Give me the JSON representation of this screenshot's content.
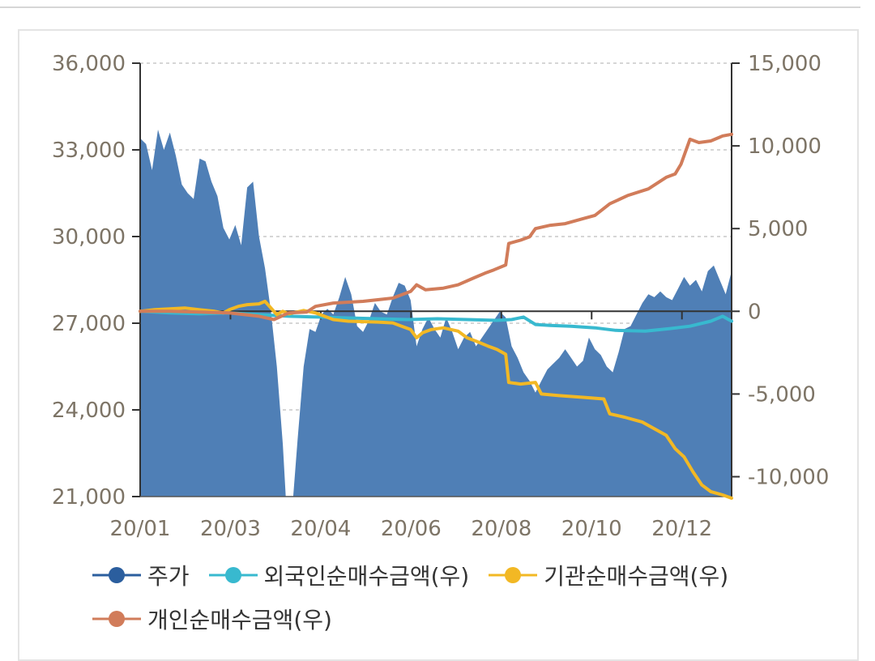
{
  "chart_data": {
    "type": "area+line",
    "x_ticks": [
      "20/01",
      "20/03",
      "20/04",
      "20/06",
      "20/08",
      "20/10",
      "20/12"
    ],
    "y_left": {
      "min": 21000,
      "max": 36000,
      "ticks": [
        "36,000",
        "33,000",
        "30,000",
        "27,000",
        "24,000",
        "21,000"
      ],
      "tick_values": [
        36000,
        33000,
        30000,
        27000,
        24000,
        21000
      ]
    },
    "y_right": {
      "min": -11200,
      "max": 15000,
      "ticks": [
        "15,000",
        "10,000",
        "5,000",
        "0",
        "-5,000",
        "-10,000"
      ],
      "tick_values": [
        15000,
        10000,
        5000,
        0,
        -5000,
        -10000
      ]
    },
    "grid": true,
    "legend_position": "bottom-left",
    "series": [
      {
        "name": "주가",
        "axis": "left",
        "style": "area",
        "color": "#2b5e9e",
        "fill": "#4f7fb6",
        "points": [
          [
            0,
            33400
          ],
          [
            4,
            33200
          ],
          [
            8,
            32300
          ],
          [
            12,
            33700
          ],
          [
            16,
            33000
          ],
          [
            20,
            33600
          ],
          [
            24,
            32800
          ],
          [
            28,
            31800
          ],
          [
            32,
            31500
          ],
          [
            36,
            31300
          ],
          [
            40,
            32700
          ],
          [
            44,
            32600
          ],
          [
            48,
            31900
          ],
          [
            52,
            31400
          ],
          [
            56,
            30300
          ],
          [
            60,
            29900
          ],
          [
            64,
            30400
          ],
          [
            68,
            29700
          ],
          [
            72,
            31700
          ],
          [
            76,
            31900
          ],
          [
            80,
            30000
          ],
          [
            84,
            28900
          ],
          [
            88,
            27400
          ],
          [
            92,
            25500
          ],
          [
            96,
            22800
          ],
          [
            98,
            21000
          ],
          [
            103,
            21000
          ],
          [
            106,
            23000
          ],
          [
            110,
            25500
          ],
          [
            114,
            26800
          ],
          [
            118,
            26700
          ],
          [
            122,
            27300
          ],
          [
            126,
            27500
          ],
          [
            130,
            27300
          ],
          [
            134,
            27900
          ],
          [
            138,
            28600
          ],
          [
            142,
            28000
          ],
          [
            146,
            26900
          ],
          [
            150,
            26700
          ],
          [
            154,
            27100
          ],
          [
            158,
            27700
          ],
          [
            162,
            27400
          ],
          [
            166,
            27300
          ],
          [
            170,
            27900
          ],
          [
            174,
            28400
          ],
          [
            178,
            28300
          ],
          [
            182,
            27800
          ],
          [
            186,
            26200
          ],
          [
            190,
            26800
          ],
          [
            194,
            27200
          ],
          [
            198,
            26800
          ],
          [
            202,
            26500
          ],
          [
            206,
            27200
          ],
          [
            210,
            26700
          ],
          [
            214,
            26100
          ],
          [
            218,
            26500
          ],
          [
            222,
            26700
          ],
          [
            226,
            26200
          ],
          [
            230,
            26500
          ],
          [
            234,
            26800
          ],
          [
            238,
            27100
          ],
          [
            242,
            27400
          ],
          [
            246,
            27200
          ],
          [
            250,
            26200
          ],
          [
            254,
            25800
          ],
          [
            258,
            25300
          ],
          [
            262,
            25000
          ],
          [
            266,
            24600
          ],
          [
            270,
            25000
          ],
          [
            274,
            25400
          ],
          [
            278,
            25600
          ],
          [
            282,
            25800
          ],
          [
            286,
            26100
          ],
          [
            290,
            25800
          ],
          [
            294,
            25500
          ],
          [
            298,
            25700
          ],
          [
            302,
            26500
          ],
          [
            306,
            26100
          ],
          [
            310,
            25900
          ],
          [
            314,
            25500
          ],
          [
            318,
            25300
          ],
          [
            322,
            26000
          ],
          [
            326,
            26800
          ],
          [
            330,
            26900
          ],
          [
            334,
            27300
          ],
          [
            338,
            27700
          ],
          [
            342,
            28000
          ],
          [
            346,
            27900
          ],
          [
            350,
            28100
          ],
          [
            354,
            27900
          ],
          [
            358,
            27800
          ],
          [
            362,
            28200
          ],
          [
            366,
            28600
          ],
          [
            370,
            28300
          ],
          [
            374,
            28500
          ],
          [
            378,
            28100
          ],
          [
            382,
            28800
          ],
          [
            386,
            29000
          ],
          [
            390,
            28500
          ],
          [
            394,
            28000
          ],
          [
            398,
            28800
          ]
        ]
      },
      {
        "name": "외국인순매수금액(우)",
        "axis": "right",
        "style": "line",
        "color": "#38b9cf",
        "points": [
          [
            0,
            0
          ],
          [
            20,
            -100
          ],
          [
            40,
            -150
          ],
          [
            60,
            -100
          ],
          [
            80,
            -200
          ],
          [
            100,
            -300
          ],
          [
            120,
            -350
          ],
          [
            140,
            -400
          ],
          [
            160,
            -450
          ],
          [
            180,
            -500
          ],
          [
            200,
            -450
          ],
          [
            220,
            -500
          ],
          [
            240,
            -550
          ],
          [
            250,
            -500
          ],
          [
            258,
            -350
          ],
          [
            266,
            -800
          ],
          [
            276,
            -850
          ],
          [
            290,
            -900
          ],
          [
            306,
            -1000
          ],
          [
            320,
            -1150
          ],
          [
            340,
            -1200
          ],
          [
            356,
            -1050
          ],
          [
            370,
            -900
          ],
          [
            384,
            -600
          ],
          [
            392,
            -300
          ],
          [
            396,
            -500
          ],
          [
            398,
            -600
          ]
        ]
      },
      {
        "name": "기관순매수금액(우)",
        "axis": "right",
        "style": "line",
        "color": "#f2b824",
        "points": [
          [
            0,
            0
          ],
          [
            10,
            100
          ],
          [
            20,
            150
          ],
          [
            30,
            200
          ],
          [
            40,
            100
          ],
          [
            50,
            0
          ],
          [
            56,
            -100
          ],
          [
            60,
            100
          ],
          [
            66,
            300
          ],
          [
            72,
            400
          ],
          [
            80,
            450
          ],
          [
            84,
            600
          ],
          [
            88,
            200
          ],
          [
            92,
            -200
          ],
          [
            96,
            0
          ],
          [
            100,
            -150
          ],
          [
            110,
            50
          ],
          [
            118,
            -100
          ],
          [
            124,
            -300
          ],
          [
            130,
            -500
          ],
          [
            140,
            -600
          ],
          [
            160,
            -650
          ],
          [
            170,
            -700
          ],
          [
            176,
            -900
          ],
          [
            182,
            -1100
          ],
          [
            186,
            -1600
          ],
          [
            190,
            -1300
          ],
          [
            196,
            -1100
          ],
          [
            204,
            -1000
          ],
          [
            214,
            -1200
          ],
          [
            220,
            -1600
          ],
          [
            226,
            -1800
          ],
          [
            234,
            -2100
          ],
          [
            240,
            -2300
          ],
          [
            246,
            -2600
          ],
          [
            248,
            -4300
          ],
          [
            256,
            -4400
          ],
          [
            266,
            -4300
          ],
          [
            270,
            -5000
          ],
          [
            282,
            -5100
          ],
          [
            298,
            -5200
          ],
          [
            312,
            -5300
          ],
          [
            316,
            -6200
          ],
          [
            326,
            -6400
          ],
          [
            338,
            -6700
          ],
          [
            346,
            -7100
          ],
          [
            354,
            -7500
          ],
          [
            360,
            -8300
          ],
          [
            366,
            -8800
          ],
          [
            372,
            -9700
          ],
          [
            378,
            -10500
          ],
          [
            384,
            -10900
          ],
          [
            392,
            -11100
          ],
          [
            398,
            -11300
          ]
        ]
      },
      {
        "name": "개인순매수금액(우)",
        "axis": "right",
        "style": "line",
        "color": "#d17c5a",
        "points": [
          [
            0,
            0
          ],
          [
            20,
            0
          ],
          [
            40,
            -50
          ],
          [
            60,
            -100
          ],
          [
            80,
            -300
          ],
          [
            90,
            -500
          ],
          [
            100,
            -100
          ],
          [
            112,
            -50
          ],
          [
            118,
            300
          ],
          [
            130,
            500
          ],
          [
            150,
            600
          ],
          [
            170,
            800
          ],
          [
            182,
            1200
          ],
          [
            186,
            1600
          ],
          [
            192,
            1300
          ],
          [
            204,
            1400
          ],
          [
            214,
            1600
          ],
          [
            224,
            2000
          ],
          [
            232,
            2300
          ],
          [
            238,
            2500
          ],
          [
            246,
            2800
          ],
          [
            248,
            4100
          ],
          [
            256,
            4300
          ],
          [
            262,
            4500
          ],
          [
            266,
            5000
          ],
          [
            276,
            5200
          ],
          [
            286,
            5300
          ],
          [
            298,
            5600
          ],
          [
            306,
            5800
          ],
          [
            316,
            6500
          ],
          [
            328,
            7000
          ],
          [
            342,
            7400
          ],
          [
            354,
            8100
          ],
          [
            360,
            8300
          ],
          [
            364,
            8900
          ],
          [
            370,
            10400
          ],
          [
            376,
            10200
          ],
          [
            384,
            10300
          ],
          [
            392,
            10600
          ],
          [
            398,
            10700
          ]
        ]
      }
    ]
  }
}
